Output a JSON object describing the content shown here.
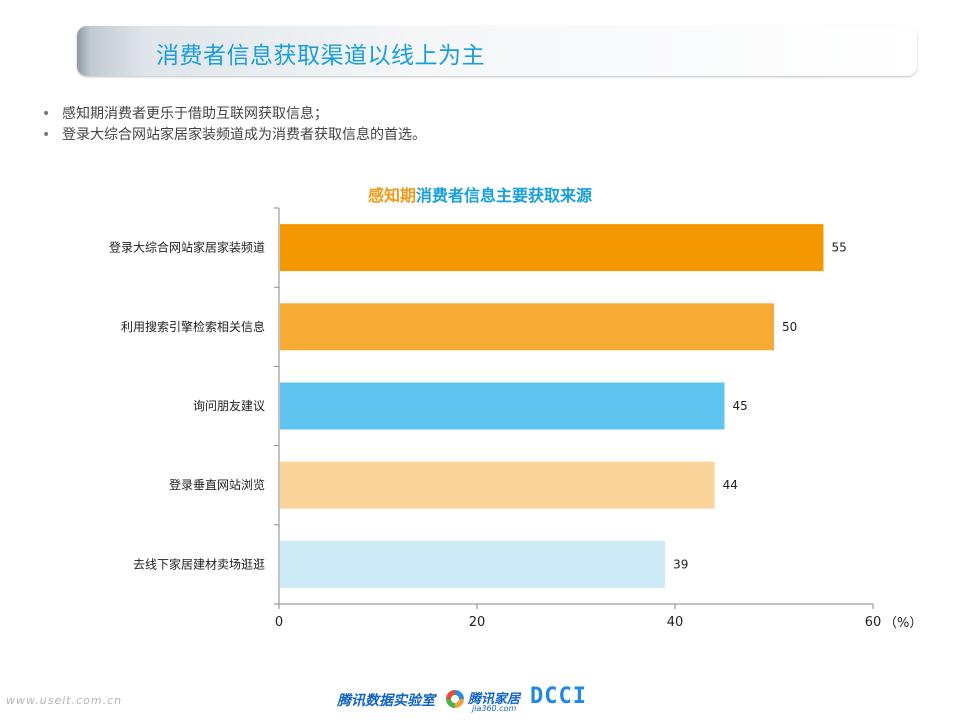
{
  "header": {
    "title": "消费者信息获取渠道以线上为主"
  },
  "bullets": [
    "感知期消费者更乐于借助互联网获取信息；",
    "登录大综合网站家居家装频道成为消费者获取信息的首选。"
  ],
  "chart_data": {
    "type": "bar",
    "orientation": "horizontal",
    "title_part1": "感知期",
    "title_part2": "消费者信息主要获取来源",
    "categories": [
      "登录大综合网站家居家装频道",
      "利用搜索引擎检索相关信息",
      "询问朋友建议",
      "登录垂直网站浏览",
      "去线下家居建材卖场逛逛"
    ],
    "values": [
      55,
      50,
      45,
      44,
      39
    ],
    "bar_colors": [
      "#f39800",
      "#f5ab34",
      "#5fc4ef",
      "#fad49a",
      "#cdeaf7"
    ],
    "xlim": [
      0,
      60
    ],
    "xticks": [
      0,
      20,
      40,
      60
    ],
    "unit_label": "（%）",
    "grid": false
  },
  "footer": {
    "url": "www.useit.com.cn",
    "brand": "腾讯数据实验室",
    "jia_text": "腾讯家居",
    "jia_sub": "jia360.com",
    "dcci": "DCCI"
  }
}
